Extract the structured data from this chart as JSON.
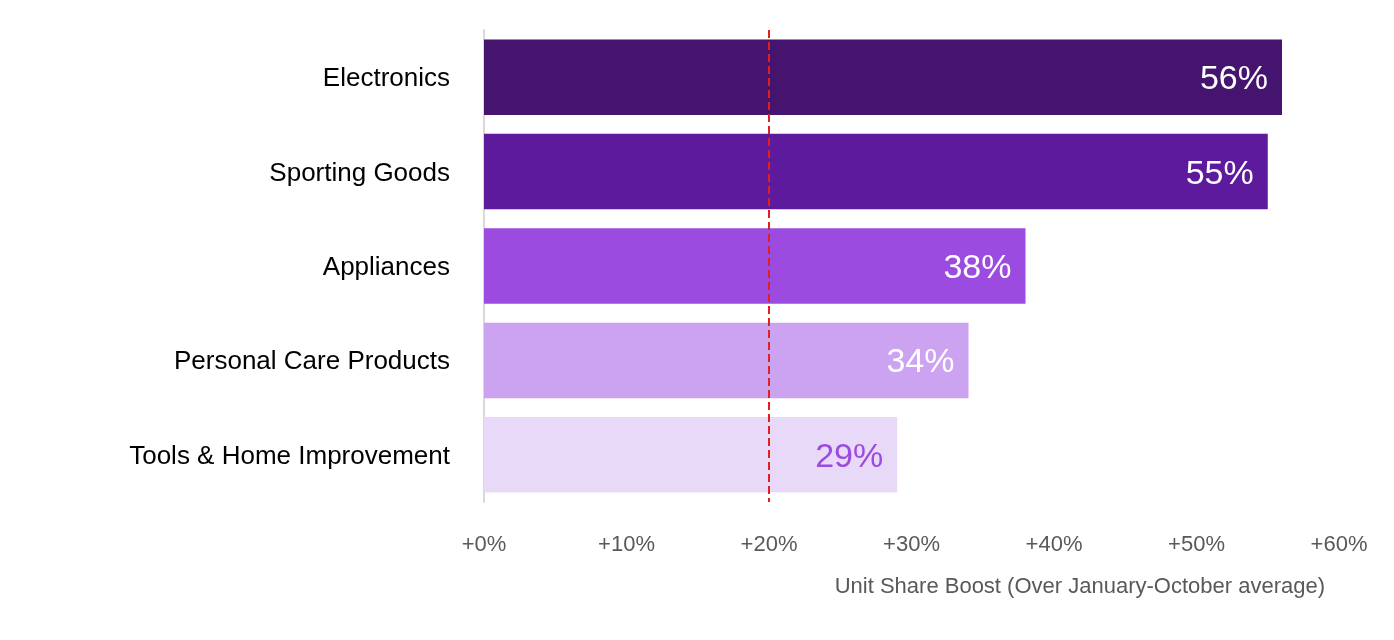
{
  "chart_data": {
    "type": "bar",
    "orientation": "horizontal",
    "categories": [
      "Electronics",
      "Sporting Goods",
      "Appliances",
      "Personal Care Products",
      "Tools & Home Improvement"
    ],
    "values": [
      56,
      55,
      38,
      34,
      29
    ],
    "colors": [
      "#44146e",
      "#5e1a9c",
      "#9b4be0",
      "#cca3f0",
      "#e8d9f8"
    ],
    "value_labels": [
      "56%",
      "55%",
      "38%",
      "34%",
      "29%"
    ],
    "xlabel": "Unit Share Boost (Over January-October average)",
    "xlim": [
      0,
      60
    ],
    "xticks": [
      {
        "value": 0,
        "label": "+0%"
      },
      {
        "value": 10,
        "label": "+10%"
      },
      {
        "value": 20,
        "label": "+20%"
      },
      {
        "value": 30,
        "label": "+30%"
      },
      {
        "value": 40,
        "label": "+40%"
      },
      {
        "value": 50,
        "label": "+50%"
      },
      {
        "value": 60,
        "label": "+60%"
      }
    ],
    "ref_lines": [
      {
        "axis": "x",
        "value": 20,
        "color": "#e02020",
        "line_style": "dashed"
      }
    ],
    "grid": false
  }
}
